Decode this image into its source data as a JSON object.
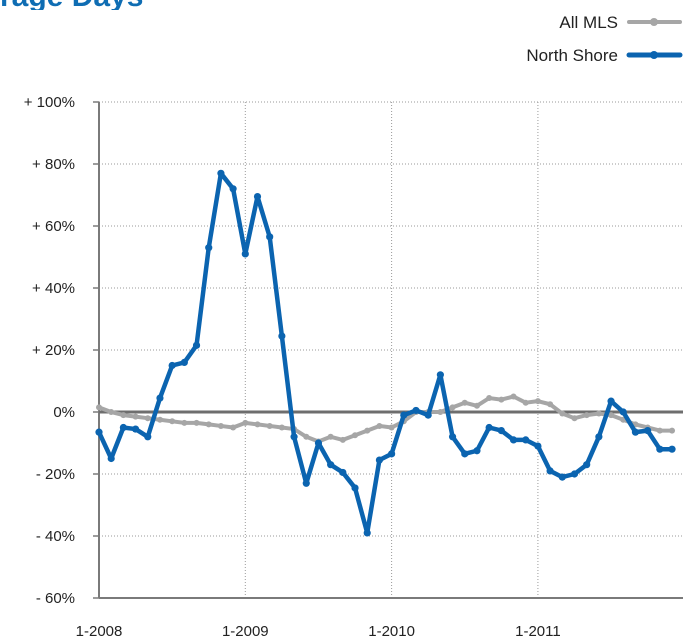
{
  "title_fragment": "rage Days",
  "chart_data": {
    "type": "line",
    "title": "",
    "xlabel": "",
    "ylabel": "",
    "ylim": [
      -60,
      100
    ],
    "xlim": [
      "2008-01",
      "2011-12"
    ],
    "x_tick_labels": [
      "1-2008",
      "1-2009",
      "1-2010",
      "1-2011"
    ],
    "y_ticks": [
      100,
      80,
      60,
      40,
      20,
      0,
      -20,
      -40,
      -60
    ],
    "y_tick_labels": [
      "+ 100%",
      "+ 80%",
      "+ 60%",
      "+ 40%",
      "+ 20%",
      "0%",
      "- 20%",
      "- 40%",
      "- 60%"
    ],
    "grid": true,
    "legend_position": "top-right",
    "x": [
      "2008-01",
      "2008-02",
      "2008-03",
      "2008-04",
      "2008-05",
      "2008-06",
      "2008-07",
      "2008-08",
      "2008-09",
      "2008-10",
      "2008-11",
      "2008-12",
      "2009-01",
      "2009-02",
      "2009-03",
      "2009-04",
      "2009-05",
      "2009-06",
      "2009-07",
      "2009-08",
      "2009-09",
      "2009-10",
      "2009-11",
      "2009-12",
      "2010-01",
      "2010-02",
      "2010-03",
      "2010-04",
      "2010-05",
      "2010-06",
      "2010-07",
      "2010-08",
      "2010-09",
      "2010-10",
      "2010-11",
      "2010-12",
      "2011-01",
      "2011-02",
      "2011-03",
      "2011-04",
      "2011-05",
      "2011-06",
      "2011-07",
      "2011-08",
      "2011-09",
      "2011-10",
      "2011-11",
      "2011-12"
    ],
    "series": [
      {
        "name": "All MLS",
        "color": "#a6a6a6",
        "values": [
          1.5,
          0,
          -1,
          -1.5,
          -2,
          -2.5,
          -3,
          -3.5,
          -3.5,
          -4,
          -4.5,
          -5,
          -3.5,
          -4,
          -4.5,
          -5,
          -5.5,
          -8,
          -9.5,
          -8,
          -9,
          -7.5,
          -6,
          -4.5,
          -5,
          -3,
          0,
          0,
          0,
          1.5,
          3,
          2,
          4.5,
          4,
          5,
          3,
          3.5,
          2.5,
          -0.5,
          -2,
          -1,
          -0.5,
          -1,
          -2.5,
          -4,
          -5,
          -6,
          -6
        ]
      },
      {
        "name": "North Shore",
        "color": "#0b64b0",
        "values": [
          -6.5,
          -15,
          -5,
          -5.5,
          -8,
          4.5,
          15,
          16,
          21.5,
          53,
          77,
          72,
          51,
          69.5,
          56.5,
          24.5,
          -8,
          -23,
          -10,
          -17,
          -19.5,
          -24.5,
          -39,
          -15.5,
          -13.5,
          -1,
          0.5,
          -1,
          12,
          -8,
          -13.5,
          -12.5,
          -5,
          -6,
          -9,
          -9,
          -11,
          -19,
          -21,
          -20,
          -17,
          -8,
          3.5,
          0,
          -6.5,
          -6,
          -12,
          -12
        ]
      }
    ]
  },
  "legend": [
    "All MLS",
    "North Shore"
  ]
}
